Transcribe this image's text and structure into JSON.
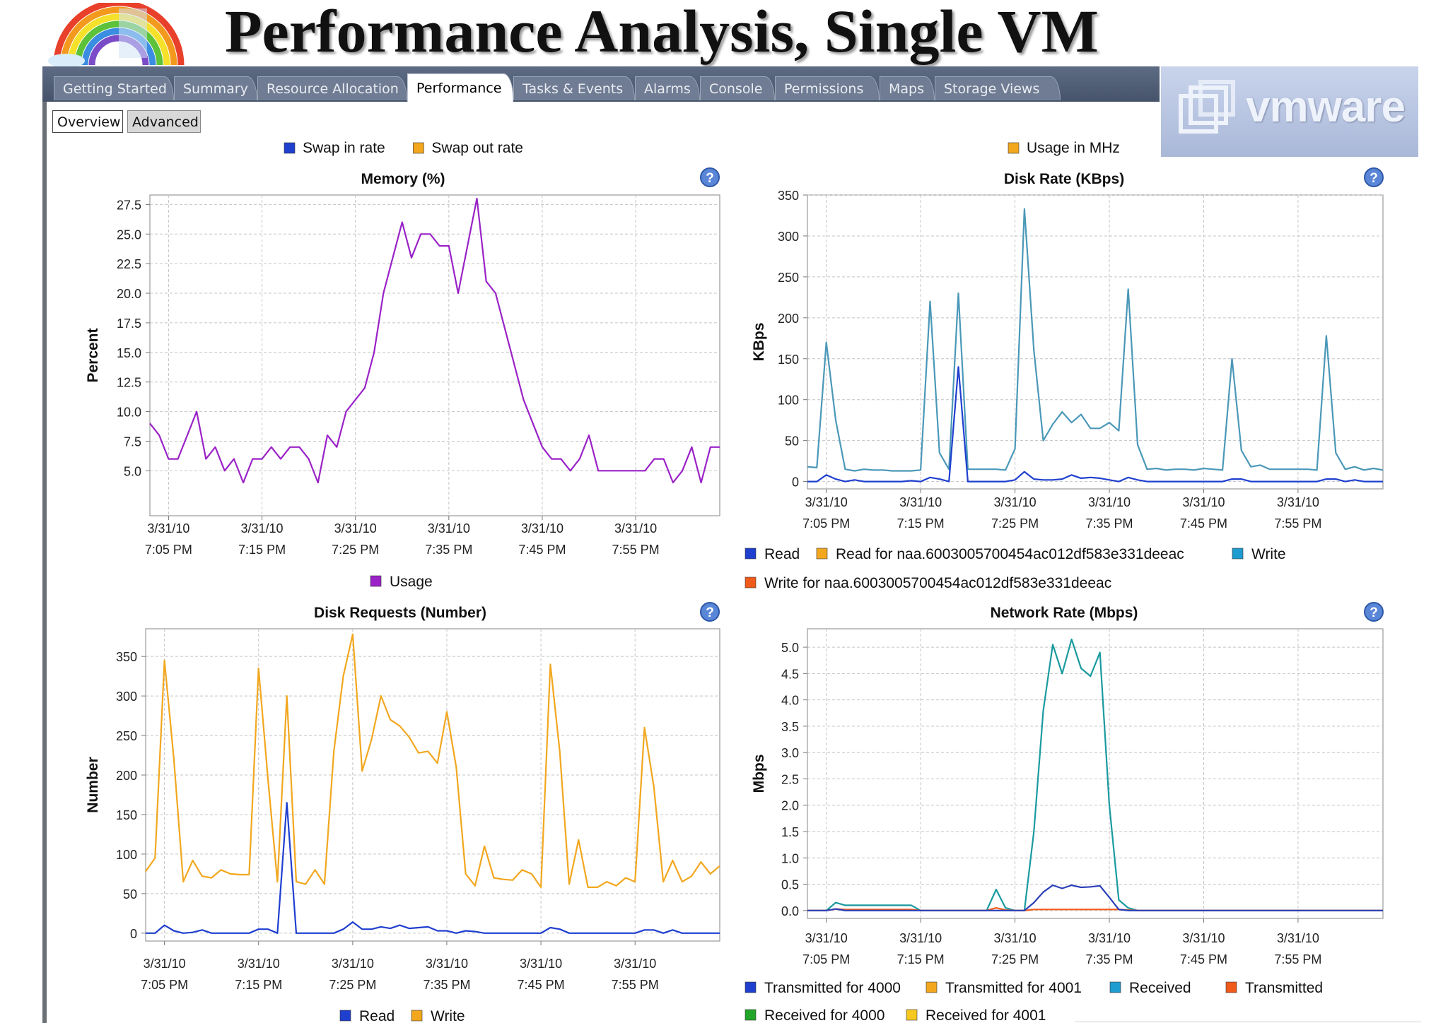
{
  "slide": {
    "title": "Performance Analysis, Single VM"
  },
  "logo": {
    "text": "vmware"
  },
  "tabs": [
    {
      "label": "Getting Started",
      "active": false
    },
    {
      "label": "Summary",
      "active": false
    },
    {
      "label": "Resource Allocation",
      "active": false
    },
    {
      "label": "Performance",
      "active": true
    },
    {
      "label": "Tasks & Events",
      "active": false
    },
    {
      "label": "Alarms",
      "active": false
    },
    {
      "label": "Console",
      "active": false
    },
    {
      "label": "Permissions",
      "active": false
    },
    {
      "label": "Maps",
      "active": false
    },
    {
      "label": "Storage Views",
      "active": false
    }
  ],
  "subtabs": {
    "overview": "Overview",
    "advanced": "Advanced"
  },
  "top_legends": {
    "left": [
      {
        "name": "Swap in rate",
        "color": "#1f3fcf"
      },
      {
        "name": "Swap out rate",
        "color": "#f2a71e"
      }
    ],
    "right": [
      {
        "name": "Usage in MHz",
        "color": "#f2a71e"
      }
    ]
  },
  "chart_data": [
    {
      "id": "memory",
      "type": "line",
      "title": "Memory (%)",
      "ylabel": "Percent",
      "ylim": [
        1.2,
        28.3
      ],
      "yticks": [
        "5.0",
        "7.5",
        "10.0",
        "12.5",
        "15.0",
        "17.5",
        "20.0",
        "22.5",
        "25.0",
        "27.5"
      ],
      "xlim": [
        0,
        61
      ],
      "xticks": [
        {
          "at": 2,
          "date": "3/31/10",
          "time": "7:05 PM"
        },
        {
          "at": 12,
          "date": "3/31/10",
          "time": "7:15 PM"
        },
        {
          "at": 22,
          "date": "3/31/10",
          "time": "7:25 PM"
        },
        {
          "at": 32,
          "date": "3/31/10",
          "time": "7:35 PM"
        },
        {
          "at": 42,
          "date": "3/31/10",
          "time": "7:45 PM"
        },
        {
          "at": 52,
          "date": "3/31/10",
          "time": "7:55 PM"
        }
      ],
      "legend": [
        {
          "name": "Usage",
          "color": "#9a22c7"
        }
      ],
      "series": [
        {
          "name": "Usage",
          "color": "#9a22c7",
          "values": [
            9,
            8,
            6,
            6,
            8,
            10,
            6,
            7,
            5,
            6,
            4,
            6,
            6,
            7,
            6,
            7,
            7,
            6,
            4,
            8,
            7,
            10,
            11,
            12,
            15,
            20,
            23,
            26,
            23,
            25,
            25,
            24,
            24,
            20,
            24,
            28,
            21,
            20,
            17,
            14,
            11,
            9,
            7,
            6,
            6,
            5,
            6,
            8,
            5,
            5,
            5,
            5,
            5,
            5,
            6,
            6,
            4,
            5,
            7,
            4,
            7,
            7
          ]
        }
      ]
    },
    {
      "id": "disk-rate",
      "type": "line",
      "title": "Disk Rate (KBps)",
      "ylabel": "KBps",
      "ylim": [
        -9,
        350
      ],
      "yticks": [
        "0",
        "50",
        "100",
        "150",
        "200",
        "250",
        "300",
        "350"
      ],
      "xlim": [
        0,
        61
      ],
      "xticks": [
        {
          "at": 2,
          "date": "3/31/10",
          "time": "7:05 PM"
        },
        {
          "at": 12,
          "date": "3/31/10",
          "time": "7:15 PM"
        },
        {
          "at": 22,
          "date": "3/31/10",
          "time": "7:25 PM"
        },
        {
          "at": 32,
          "date": "3/31/10",
          "time": "7:35 PM"
        },
        {
          "at": 42,
          "date": "3/31/10",
          "time": "7:45 PM"
        },
        {
          "at": 52,
          "date": "3/31/10",
          "time": "7:55 PM"
        }
      ],
      "legend": [
        {
          "name": "Read",
          "color": "#1f3fcf"
        },
        {
          "name": "Read for naa.6003005700454ac012df583e331deeac",
          "color": "#f2a71e"
        },
        {
          "name": "Write",
          "color": "#1e9cd0"
        },
        {
          "name": "Write for naa.6003005700454ac012df583e331deeac",
          "color": "#f05a1a"
        }
      ],
      "series": [
        {
          "name": "Write",
          "color": "#4a98b8",
          "values": [
            18,
            17,
            170,
            75,
            15,
            13,
            15,
            14,
            14,
            13,
            13,
            13,
            14,
            220,
            35,
            15,
            230,
            15,
            15,
            15,
            15,
            14,
            40,
            333,
            160,
            50,
            70,
            85,
            72,
            82,
            65,
            65,
            72,
            62,
            235,
            45,
            15,
            16,
            14,
            15,
            15,
            14,
            16,
            15,
            14,
            150,
            38,
            18,
            20,
            15,
            15,
            15,
            15,
            15,
            14,
            178,
            35,
            15,
            18,
            14,
            16,
            14
          ]
        },
        {
          "name": "Read",
          "color": "#1f3fcf",
          "values": [
            0,
            0,
            8,
            3,
            0,
            2,
            0,
            0,
            0,
            0,
            0,
            1,
            0,
            5,
            3,
            0,
            140,
            0,
            0,
            0,
            0,
            0,
            2,
            12,
            3,
            2,
            2,
            3,
            8,
            4,
            5,
            4,
            2,
            0,
            5,
            2,
            0,
            0,
            0,
            0,
            0,
            0,
            0,
            0,
            0,
            3,
            3,
            0,
            0,
            0,
            0,
            0,
            0,
            0,
            0,
            3,
            3,
            0,
            2,
            0,
            0,
            0
          ]
        }
      ]
    },
    {
      "id": "disk-requests",
      "type": "line",
      "title": "Disk Requests (Number)",
      "ylabel": "Number",
      "ylim": [
        -10,
        385
      ],
      "yticks": [
        "0",
        "50",
        "100",
        "150",
        "200",
        "250",
        "300",
        "350"
      ],
      "xlim": [
        0,
        61
      ],
      "xticks": [
        {
          "at": 2,
          "date": "3/31/10",
          "time": "7:05 PM"
        },
        {
          "at": 12,
          "date": "3/31/10",
          "time": "7:15 PM"
        },
        {
          "at": 22,
          "date": "3/31/10",
          "time": "7:25 PM"
        },
        {
          "at": 32,
          "date": "3/31/10",
          "time": "7:35 PM"
        },
        {
          "at": 42,
          "date": "3/31/10",
          "time": "7:45 PM"
        },
        {
          "at": 52,
          "date": "3/31/10",
          "time": "7:55 PM"
        }
      ],
      "legend": [
        {
          "name": "Read",
          "color": "#1f3fcf"
        },
        {
          "name": "Write",
          "color": "#f2a71e"
        }
      ],
      "series": [
        {
          "name": "Write",
          "color": "#f2a71e",
          "values": [
            78,
            95,
            345,
            220,
            65,
            92,
            72,
            70,
            80,
            75,
            74,
            74,
            335,
            195,
            65,
            300,
            65,
            62,
            80,
            62,
            230,
            325,
            378,
            205,
            245,
            300,
            270,
            262,
            248,
            228,
            230,
            215,
            280,
            210,
            75,
            60,
            110,
            70,
            68,
            67,
            80,
            75,
            58,
            340,
            230,
            62,
            118,
            58,
            58,
            65,
            60,
            70,
            65,
            260,
            185,
            65,
            92,
            65,
            72,
            90,
            75,
            85
          ]
        },
        {
          "name": "Read",
          "color": "#1f3fcf",
          "values": [
            0,
            0,
            10,
            3,
            0,
            1,
            4,
            0,
            0,
            0,
            0,
            0,
            5,
            5,
            0,
            165,
            0,
            0,
            0,
            0,
            0,
            5,
            14,
            5,
            5,
            8,
            6,
            10,
            6,
            7,
            8,
            3,
            3,
            0,
            3,
            2,
            0,
            0,
            0,
            0,
            0,
            0,
            0,
            7,
            5,
            0,
            0,
            0,
            0,
            0,
            0,
            0,
            0,
            4,
            4,
            0,
            4,
            0,
            0,
            0,
            0,
            0
          ]
        }
      ]
    },
    {
      "id": "network-rate",
      "type": "line",
      "title": "Network Rate (Mbps)",
      "ylabel": "Mbps",
      "ylim": [
        -0.15,
        5.35
      ],
      "yticks": [
        "0.0",
        "0.5",
        "1.0",
        "1.5",
        "2.0",
        "2.5",
        "3.0",
        "3.5",
        "4.0",
        "4.5",
        "5.0"
      ],
      "xlim": [
        0,
        61
      ],
      "xticks": [
        {
          "at": 2,
          "date": "3/31/10",
          "time": "7:05 PM"
        },
        {
          "at": 12,
          "date": "3/31/10",
          "time": "7:15 PM"
        },
        {
          "at": 22,
          "date": "3/31/10",
          "time": "7:25 PM"
        },
        {
          "at": 32,
          "date": "3/31/10",
          "time": "7:35 PM"
        },
        {
          "at": 42,
          "date": "3/31/10",
          "time": "7:45 PM"
        },
        {
          "at": 52,
          "date": "3/31/10",
          "time": "7:55 PM"
        }
      ],
      "legend": [
        {
          "name": "Transmitted for 4000",
          "color": "#1f3fcf"
        },
        {
          "name": "Transmitted for 4001",
          "color": "#f2a71e"
        },
        {
          "name": "Received",
          "color": "#1e9cd0"
        },
        {
          "name": "Transmitted",
          "color": "#f05a1a"
        },
        {
          "name": "Received for 4000",
          "color": "#22a62a"
        },
        {
          "name": "Received for 4001",
          "color": "#f7c81e"
        }
      ],
      "series": [
        {
          "name": "Received",
          "color": "#1a9aa0",
          "values": [
            0,
            0,
            0,
            0.15,
            0.1,
            0.1,
            0.1,
            0.1,
            0.1,
            0.1,
            0.1,
            0.1,
            0,
            0,
            0,
            0,
            0,
            0,
            0,
            0,
            0.4,
            0.05,
            0,
            0,
            1.5,
            3.8,
            5.05,
            4.5,
            5.15,
            4.6,
            4.45,
            4.9,
            2.0,
            0.2,
            0.05,
            0,
            0,
            0,
            0,
            0,
            0,
            0,
            0,
            0,
            0,
            0,
            0,
            0,
            0,
            0,
            0,
            0,
            0,
            0,
            0,
            0,
            0,
            0,
            0,
            0,
            0,
            0
          ]
        },
        {
          "name": "Transmitted",
          "color": "#f05a1a",
          "values": [
            0,
            0,
            0,
            0.03,
            0.02,
            0.02,
            0.02,
            0.02,
            0.02,
            0.02,
            0.02,
            0.02,
            0,
            0,
            0,
            0,
            0,
            0,
            0,
            0,
            0.05,
            0.01,
            0,
            0,
            0.02,
            0.02,
            0.02,
            0.02,
            0.02,
            0.02,
            0.02,
            0.02,
            0.02,
            0.02,
            0.01,
            0,
            0,
            0,
            0,
            0,
            0,
            0,
            0,
            0,
            0,
            0,
            0,
            0,
            0,
            0,
            0,
            0,
            0,
            0,
            0,
            0,
            0,
            0,
            0,
            0,
            0,
            0
          ]
        },
        {
          "name": "Transmitted for 4000",
          "color": "#2a3fb8",
          "values": [
            0,
            0,
            0,
            0.03,
            0,
            0,
            0,
            0,
            0,
            0,
            0,
            0,
            0,
            0,
            0,
            0,
            0,
            0,
            0,
            0,
            0,
            0,
            0,
            0,
            0.15,
            0.35,
            0.48,
            0.42,
            0.48,
            0.44,
            0.45,
            0.47,
            0.25,
            0.02,
            0,
            0,
            0,
            0,
            0,
            0,
            0,
            0,
            0,
            0,
            0,
            0,
            0,
            0,
            0,
            0,
            0,
            0,
            0,
            0,
            0,
            0,
            0,
            0,
            0,
            0,
            0,
            0
          ]
        }
      ]
    }
  ]
}
